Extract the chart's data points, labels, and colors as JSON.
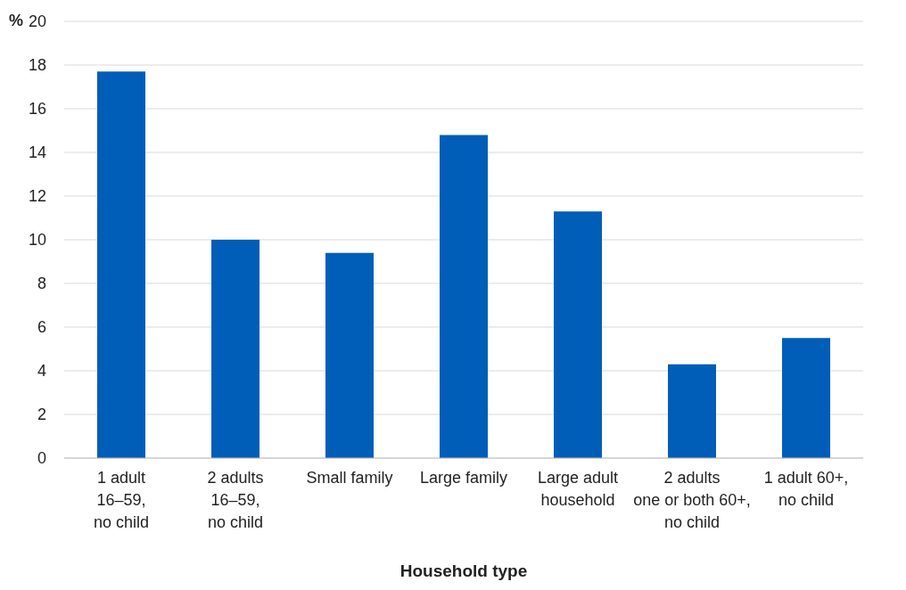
{
  "chart_data": {
    "type": "bar",
    "ylabel": "%",
    "xlabel": "Household type",
    "categories": [
      "1 adult\n16–59,\nno child",
      "2 adults\n16–59,\nno child",
      "Small family",
      "Large family",
      "Large adult\nhousehold",
      "2 adults\none or both 60+,\nno child",
      "1 adult 60+,\nno child"
    ],
    "values": [
      17.7,
      10.0,
      9.4,
      14.8,
      11.3,
      4.3,
      5.5
    ],
    "color": "#005eb8",
    "ylim": [
      0,
      20
    ],
    "yticks": [
      0,
      2,
      4,
      6,
      8,
      10,
      12,
      14,
      16,
      18,
      20
    ],
    "grid": "y"
  }
}
